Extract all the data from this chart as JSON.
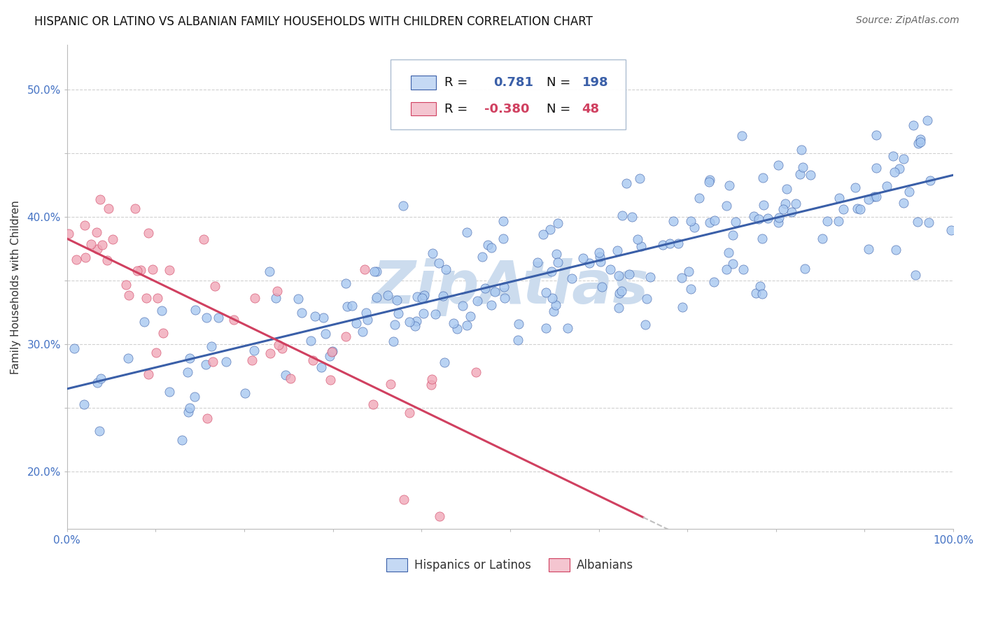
{
  "title": "HISPANIC OR LATINO VS ALBANIAN FAMILY HOUSEHOLDS WITH CHILDREN CORRELATION CHART",
  "source": "Source: ZipAtlas.com",
  "ylabel": "Family Households with Children",
  "watermark": "ZipAtlas",
  "xlim": [
    0.0,
    1.0
  ],
  "ylim": [
    0.155,
    0.535
  ],
  "xticks": [
    0.0,
    0.1,
    0.2,
    0.3,
    0.4,
    0.5,
    0.6,
    0.7,
    0.8,
    0.9,
    1.0
  ],
  "xticklabels": [
    "0.0%",
    "",
    "",
    "",
    "",
    "",
    "",
    "",
    "",
    "",
    "100.0%"
  ],
  "yticks": [
    0.2,
    0.25,
    0.3,
    0.35,
    0.4,
    0.45,
    0.5
  ],
  "yticklabels": [
    "20.0%",
    "",
    "30.0%",
    "",
    "40.0%",
    "",
    "50.0%"
  ],
  "r_hispanic": 0.781,
  "n_hispanic": 198,
  "r_albanian": -0.38,
  "n_albanian": 48,
  "dot_color_hispanic": "#a8c8f0",
  "dot_color_albanian": "#f0a8b8",
  "line_color_hispanic": "#3a5fa8",
  "line_color_albanian": "#d04060",
  "legend_box_color_hispanic": "#c5d9f4",
  "legend_box_color_albanian": "#f4c5d0",
  "background_color": "#ffffff",
  "grid_color": "#cccccc",
  "watermark_color": "#ccdcee",
  "title_fontsize": 12,
  "source_fontsize": 10,
  "axis_label_fontsize": 11,
  "tick_fontsize": 11,
  "legend_fontsize": 13
}
